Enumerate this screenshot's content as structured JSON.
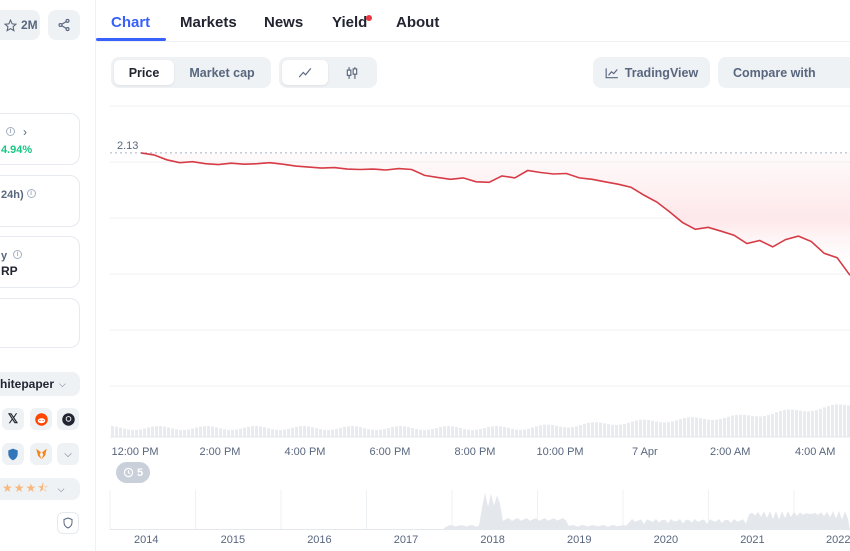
{
  "header": {
    "watchlist_count": "2M"
  },
  "left_panel": {
    "stat1_value": "4.94%",
    "stat2_label": "24h)",
    "stat3_label": "y",
    "stat3_value": "RP",
    "whitepaper_label": "hitepaper",
    "social_icons": [
      "x-icon",
      "reddit-icon",
      "github-icon"
    ],
    "wallet_icons": [
      "shield-wallet-icon",
      "metamask-icon"
    ],
    "rating_stars": 3.5
  },
  "tabs": [
    {
      "label": "Chart"
    },
    {
      "label": "Markets"
    },
    {
      "label": "News"
    },
    {
      "label": "Yield"
    },
    {
      "label": "About"
    }
  ],
  "toolbar": {
    "price_label": "Price",
    "market_cap_label": "Market cap",
    "tradingview_label": "TradingView",
    "compare_label": "Compare with"
  },
  "chart_data": {
    "type": "line",
    "title": "",
    "xlabel": "",
    "ylabel": "",
    "start_price_label": "2.13",
    "x_ticks": [
      "12:00 PM",
      "2:00 PM",
      "4:00 PM",
      "6:00 PM",
      "8:00 PM",
      "10:00 PM",
      "7 Apr",
      "2:00 AM",
      "4:00 AM"
    ],
    "series": [
      {
        "values": [
          2.13,
          2.126,
          2.116,
          2.11,
          2.112,
          2.108,
          2.106,
          2.109,
          2.107,
          2.108,
          2.11,
          2.107,
          2.103,
          2.101,
          2.099,
          2.1,
          2.097,
          2.096,
          2.097,
          2.095,
          2.098,
          2.096,
          2.084,
          2.08,
          2.076,
          2.079,
          2.071,
          2.07,
          2.083,
          2.079,
          2.094,
          2.09,
          2.087,
          2.088,
          2.079,
          2.076,
          2.071,
          2.066,
          2.06,
          2.044,
          2.03,
          2.01,
          1.988,
          1.974,
          1.978,
          1.97,
          1.962,
          1.945,
          1.951,
          1.938,
          1.953,
          1.96,
          1.949,
          1.925,
          1.916,
          1.88
        ]
      }
    ],
    "color": "#d63b46",
    "area_fill": "#fde9ea",
    "ylim": [
      1.85,
      2.14
    ],
    "grid": true,
    "year_ticks": [
      "2014",
      "2015",
      "2016",
      "2017",
      "2018",
      "2019",
      "2020",
      "2021",
      "2022"
    ],
    "zoom_badge": "5"
  }
}
